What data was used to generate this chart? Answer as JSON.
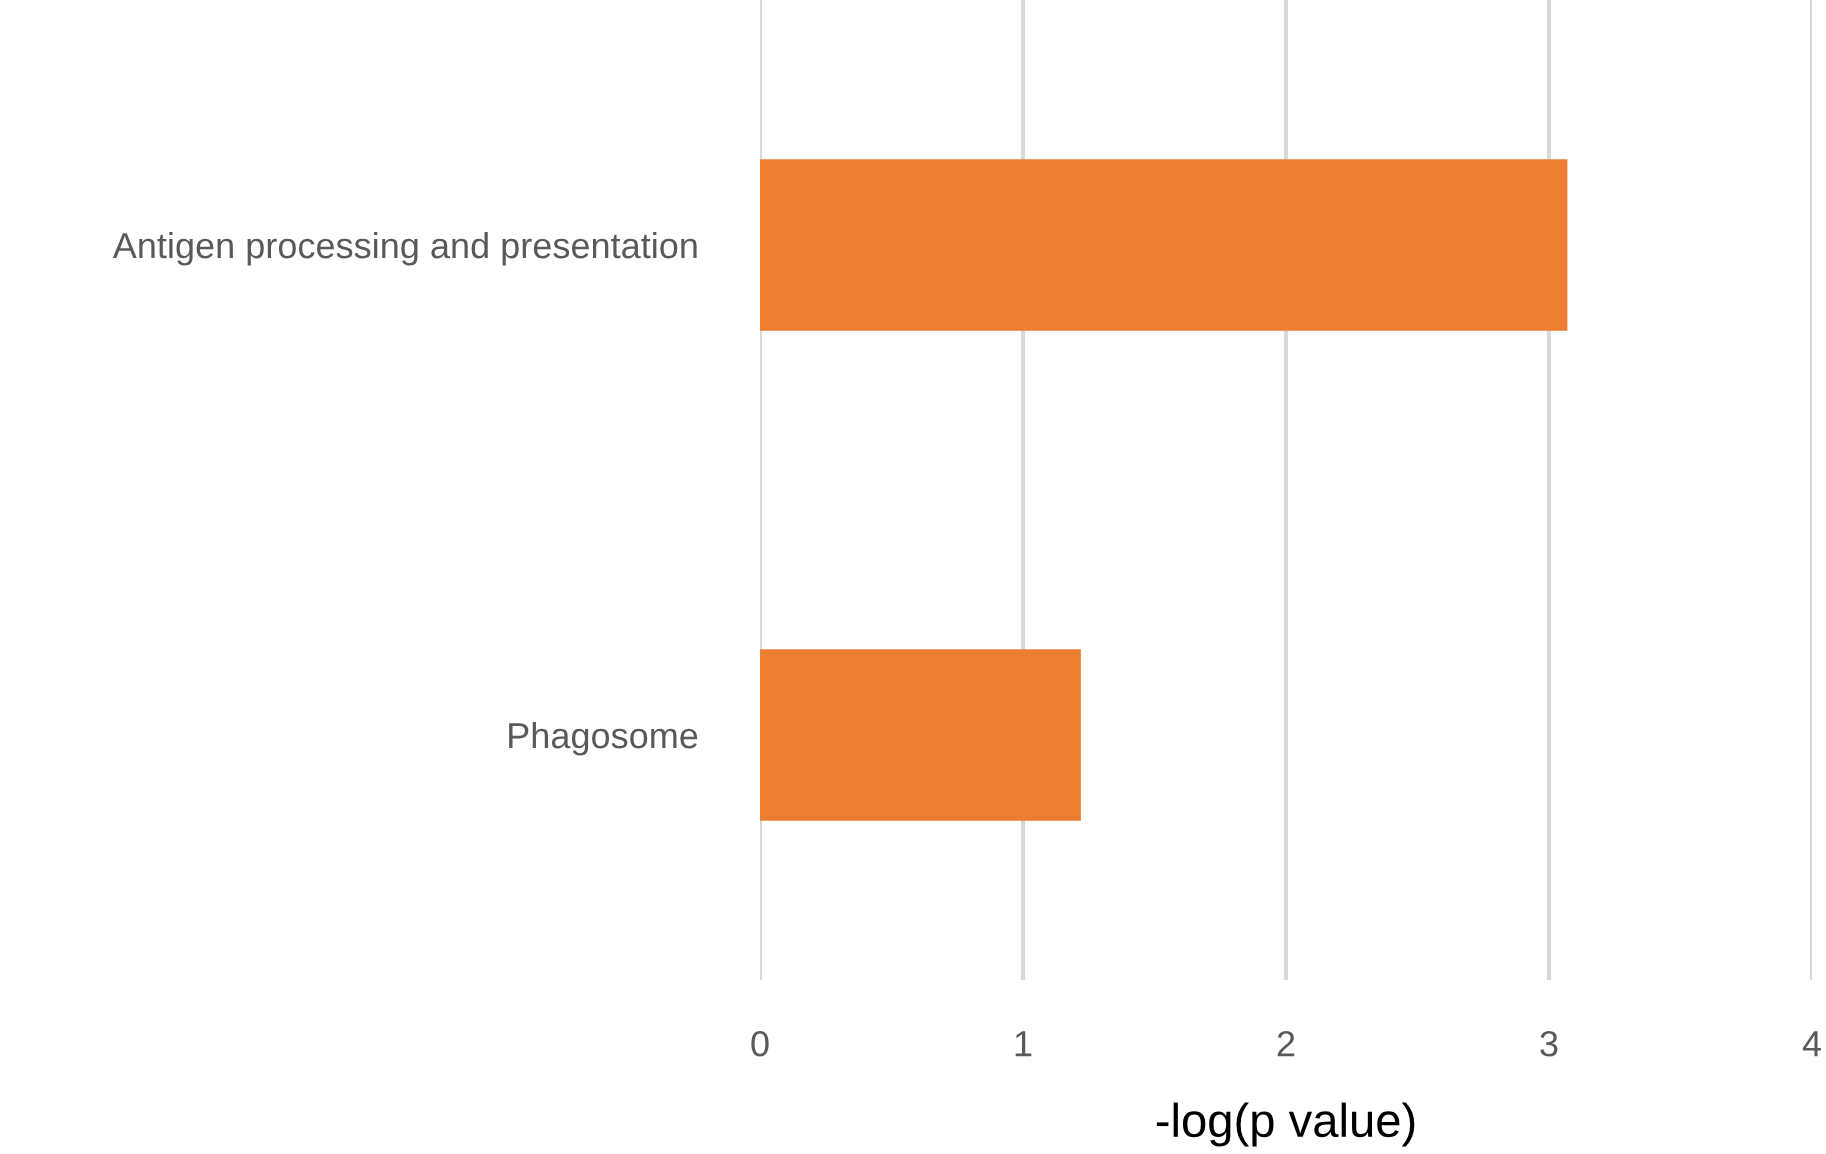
{
  "chart_data": {
    "type": "bar",
    "orientation": "horizontal",
    "xlabel": "-log(p value)",
    "categories": [
      "Antigen processing and presentation",
      "Phagosome"
    ],
    "values": [
      3.07,
      1.22
    ],
    "color": "#ed7d31",
    "xlim": [
      0,
      4
    ],
    "xticks": [
      0,
      1,
      2,
      3,
      4
    ],
    "grid": "x",
    "legend": false
  }
}
